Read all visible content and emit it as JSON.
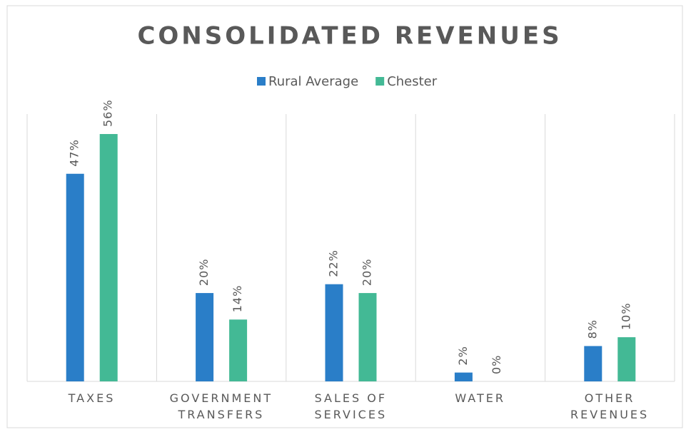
{
  "chart_data": {
    "type": "bar",
    "title": "CONSOLIDATED REVENUES",
    "categories": [
      "TAXES",
      "GOVERNMENT\nTRANSFERS",
      "SALES OF\nSERVICES",
      "WATER",
      "OTHER\nREVENUES"
    ],
    "series": [
      {
        "name": "Rural Average",
        "color": "#2a7ec8",
        "values": [
          47,
          20,
          22,
          2,
          8
        ],
        "value_labels": [
          "47%",
          "20%",
          "22%",
          "2%",
          "8%"
        ]
      },
      {
        "name": "Chester",
        "color": "#43b995",
        "values": [
          56,
          14,
          20,
          0,
          10
        ],
        "value_labels": [
          "56%",
          "14%",
          "20%",
          "0%",
          "10%"
        ]
      }
    ],
    "legend": "top"
  }
}
